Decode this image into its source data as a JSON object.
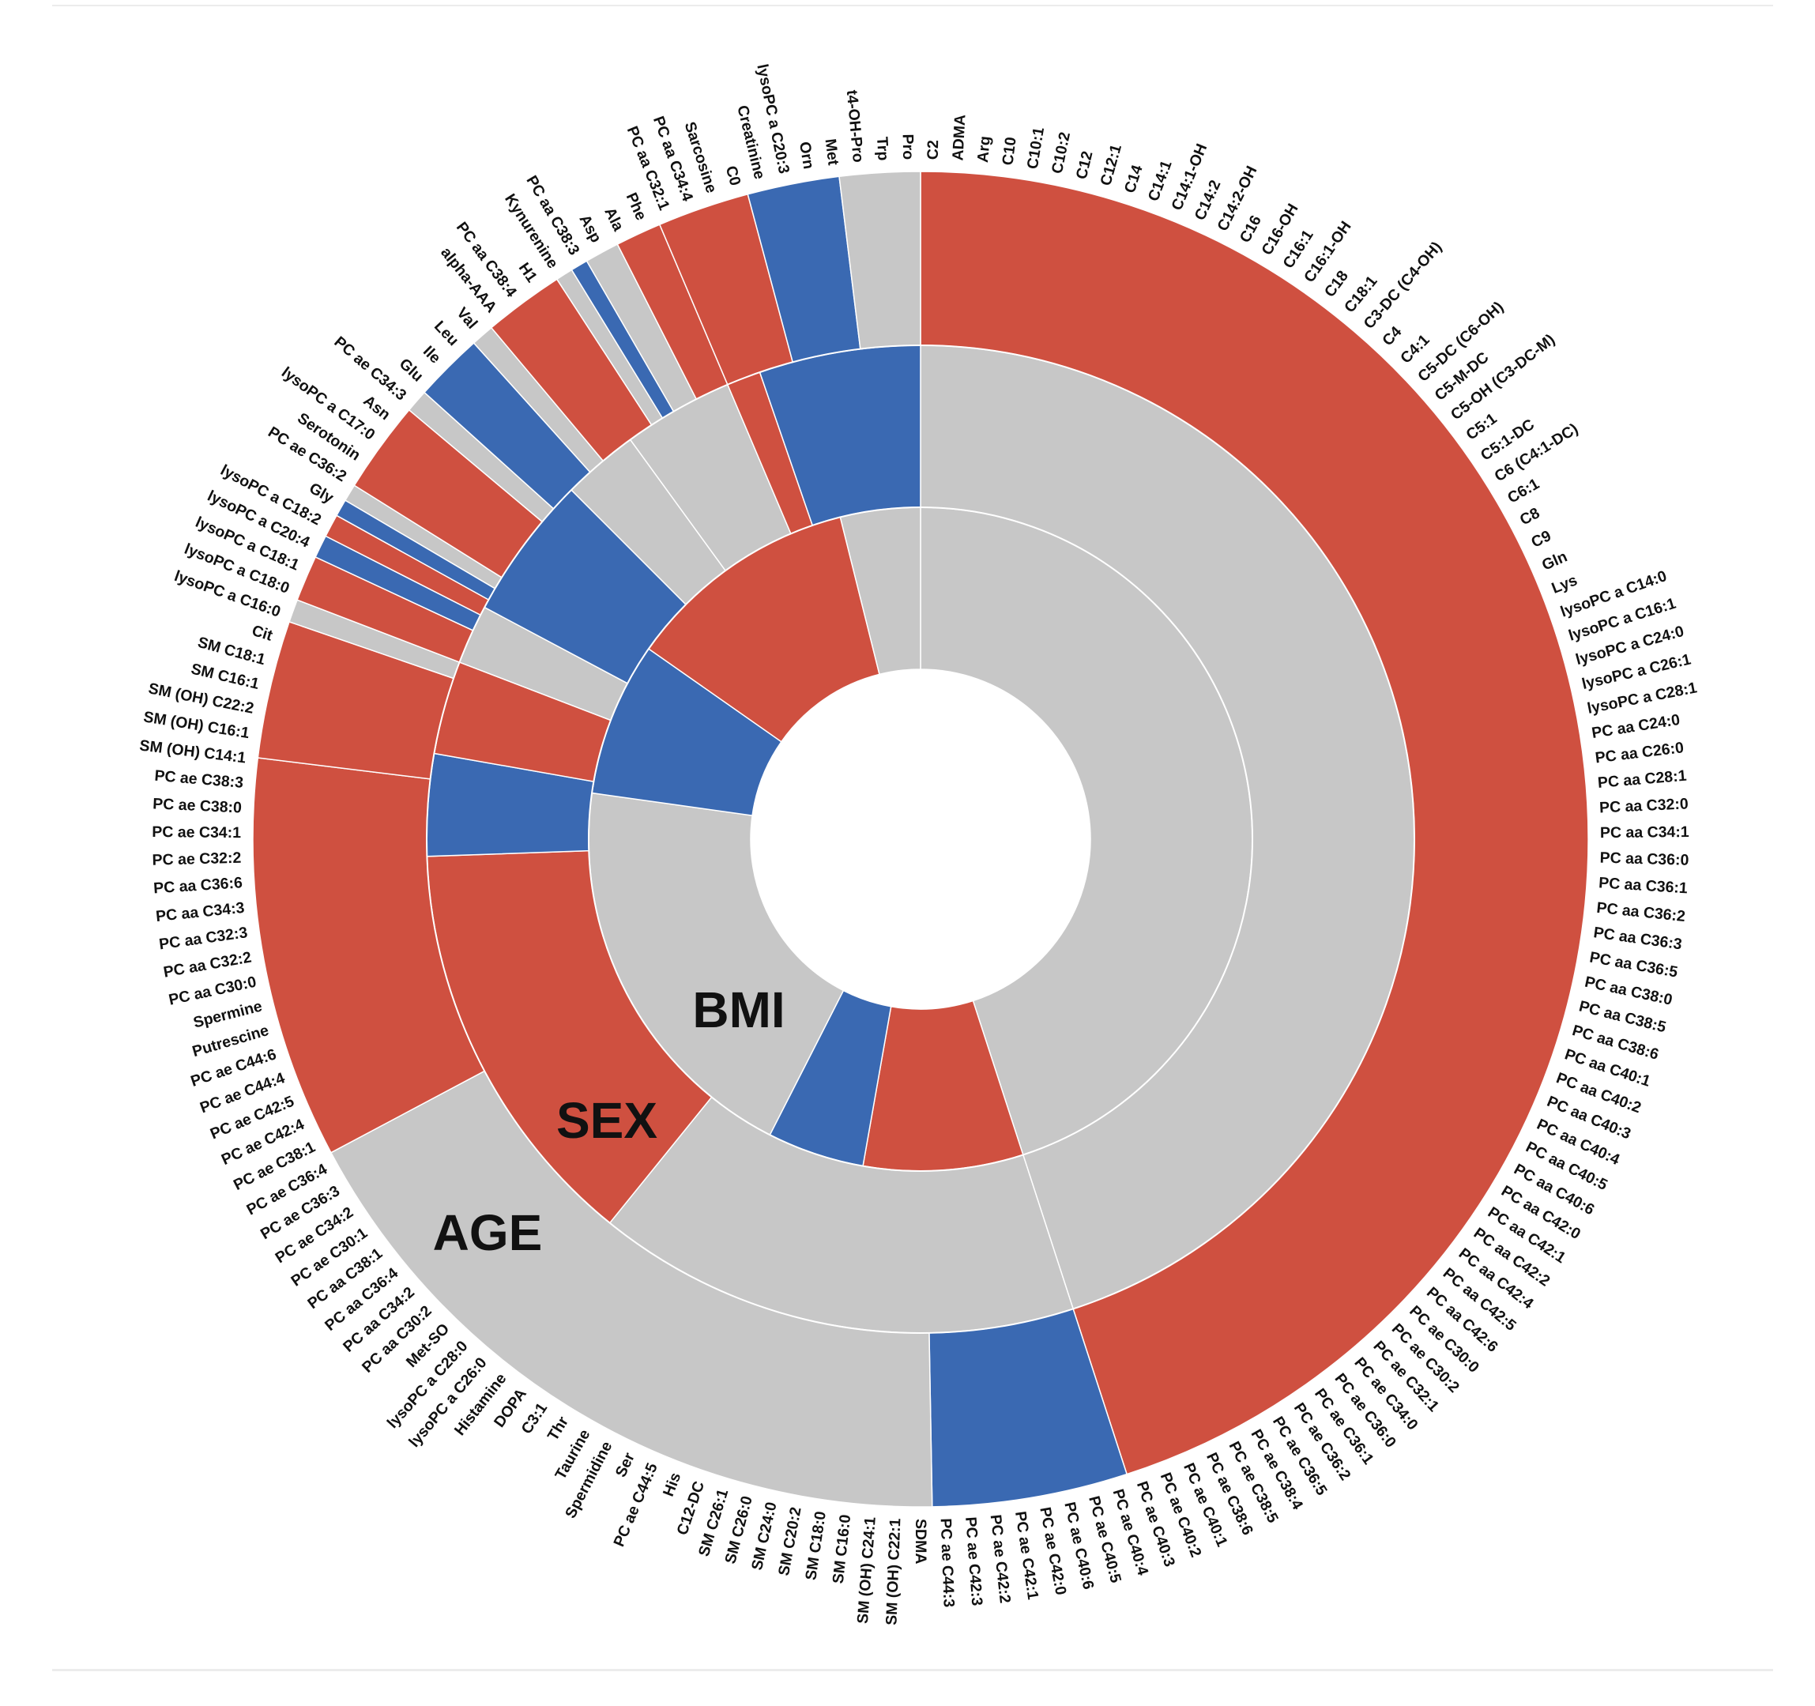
{
  "chart_data": {
    "type": "sunburst",
    "title": "",
    "colors": {
      "increase": "#cf5040",
      "decrease": "#3a69b2",
      "none": "#c7c7c7"
    },
    "ring_labels": {
      "inner": "BMI",
      "middle": "SEX",
      "outer": "AGE"
    },
    "start_label": "C2",
    "metabolites": [
      "C2",
      "ADMA",
      "Arg",
      "C10",
      "C10:1",
      "C10:2",
      "C12",
      "C12:1",
      "C14",
      "C14:1",
      "C14:1-OH",
      "C14:2",
      "C14:2-OH",
      "C16",
      "C16-OH",
      "C16:1",
      "C16:1-OH",
      "C18",
      "C18:1",
      "C3-DC (C4-OH)",
      "C4",
      "C4:1",
      "C5-DC (C6-OH)",
      "C5-M-DC",
      "C5-OH (C3-DC-M)",
      "C5:1",
      "C5:1-DC",
      "C6 (C4:1-DC)",
      "C6:1",
      "C8",
      "C9",
      "Gln",
      "Lys",
      "lysoPC a C14:0",
      "lysoPC a C16:1",
      "lysoPC a C24:0",
      "lysoPC a C26:1",
      "lysoPC a C28:1",
      "PC aa C24:0",
      "PC aa C26:0",
      "PC aa C28:1",
      "PC aa C32:0",
      "PC aa C34:1",
      "PC aa C36:0",
      "PC aa C36:1",
      "PC aa C36:2",
      "PC aa C36:3",
      "PC aa C36:5",
      "PC aa C38:0",
      "PC aa C38:5",
      "PC aa C38:6",
      "PC aa C40:1",
      "PC aa C40:2",
      "PC aa C40:3",
      "PC aa C40:4",
      "PC aa C40:5",
      "PC aa C40:6",
      "PC aa C42:0",
      "PC aa C42:1",
      "PC aa C42:2",
      "PC aa C42:4",
      "PC aa C42:5",
      "PC aa C42:6",
      "PC ae C30:0",
      "PC ae C30:2",
      "PC ae C32:1",
      "PC ae C34:0",
      "PC ae C36:0",
      "PC ae C36:1",
      "PC ae C36:2",
      "PC ae C36:5",
      "PC ae C38:4",
      "PC ae C38:5",
      "PC ae C38:6",
      "PC ae C40:1",
      "PC ae C40:2",
      "PC ae C40:3",
      "PC ae C40:4",
      "PC ae C40:5",
      "PC ae C40:6",
      "PC ae C42:0",
      "PC ae C42:1",
      "PC ae C42:2",
      "PC ae C42:3",
      "PC ae C44:3",
      "SDMA",
      "SM (OH) C22:1",
      "SM (OH) C24:1",
      "SM C16:0",
      "SM C18:0",
      "SM C20:2",
      "SM C24:0",
      "SM C26:0",
      "SM C26:1",
      "C12-DC",
      "His",
      "PC ae C44:5",
      "Ser",
      "Spermidine",
      "Taurine",
      "Thr",
      "C3:1",
      "DOPA",
      "Histamine",
      "lysoPC a C26:0",
      "lysoPC a C28:0",
      "Met-SO",
      "PC aa C30:2",
      "PC aa C34:2",
      "PC aa C36:4",
      "PC aa C38:1",
      "PC ae C30:1",
      "PC ae C34:2",
      "PC ae C36:3",
      "PC ae C36:4",
      "PC ae C38:1",
      "PC ae C42:4",
      "PC ae C42:5",
      "PC ae C44:4",
      "PC ae C44:6",
      "Putrescine",
      "Spermine",
      "PC aa C30:0",
      "PC aa C32:2",
      "PC aa C32:3",
      "PC aa C34:3",
      "PC aa C36:6",
      "PC ae C32:2",
      "PC ae C34:1",
      "PC ae C38:0",
      "PC ae C38:3",
      "SM (OH) C14:1",
      "SM (OH) C16:1",
      "SM (OH) C22:2",
      "SM C16:1",
      "SM C18:1",
      "Cit",
      "lysoPC a C16:0",
      "lysoPC a C18:0",
      "lysoPC a C18:1",
      "lysoPC a C20:4",
      "lysoPC a C18:2",
      "Gly",
      "PC ae C36:2",
      "Serotonin",
      "lysoPC a C17:0",
      "Asn",
      "PC ae C34:3",
      "Glu",
      "Ile",
      "Leu",
      "Val",
      "alpha-AAA",
      "PC aa C38:4",
      "H1",
      "Kynurenine",
      "PC aa C38:3",
      "Asp",
      "Ala",
      "Phe",
      "PC aa C32:1",
      "PC aa C34:4",
      "Sarcosine",
      "C0",
      "Creatinine",
      "lysoPC a C20:3",
      "Orn",
      "Met",
      "t4-OH-Pro",
      "Trp",
      "Pro"
    ],
    "rings": {
      "BMI": [
        {
          "start": 0,
          "end": 162,
          "effect": "none"
        },
        {
          "start": 162,
          "end": 190,
          "effect": "increase"
        },
        {
          "start": 190,
          "end": 207,
          "effect": "decrease"
        },
        {
          "start": 207,
          "end": 278,
          "effect": "none"
        },
        {
          "start": 278,
          "end": 305,
          "effect": "decrease"
        },
        {
          "start": 305,
          "end": 346,
          "effect": "increase"
        },
        {
          "start": 346,
          "end": 360,
          "effect": "none"
        }
      ],
      "SEX": [
        {
          "start": 0,
          "end": 162,
          "effect": "none"
        },
        {
          "start": 162,
          "end": 219,
          "effect": "none"
        },
        {
          "start": 219,
          "end": 268,
          "effect": "increase"
        },
        {
          "start": 268,
          "end": 280,
          "effect": "decrease"
        },
        {
          "start": 280,
          "end": 291,
          "effect": "increase"
        },
        {
          "start": 291,
          "end": 298,
          "effect": "none"
        },
        {
          "start": 298,
          "end": 315,
          "effect": "decrease"
        },
        {
          "start": 315,
          "end": 324,
          "effect": "none"
        },
        {
          "start": 324,
          "end": 337,
          "effect": "none"
        },
        {
          "start": 337,
          "end": 341,
          "effect": "increase"
        },
        {
          "start": 341,
          "end": 360,
          "effect": "decrease"
        }
      ],
      "AGE": [
        {
          "start": 0,
          "end": 162,
          "effect": "increase"
        },
        {
          "start": 162,
          "end": 179,
          "effect": "decrease"
        },
        {
          "start": 179,
          "end": 242,
          "effect": "none"
        },
        {
          "start": 242,
          "end": 277,
          "effect": "increase"
        },
        {
          "start": 277,
          "end": 289,
          "effect": "increase"
        },
        {
          "start": 289,
          "end": 291,
          "effect": "none"
        },
        {
          "start": 291,
          "end": 295,
          "effect": "increase"
        },
        {
          "start": 295,
          "end": 297,
          "effect": "decrease"
        },
        {
          "start": 297,
          "end": 299,
          "effect": "increase"
        },
        {
          "start": 299,
          "end": 300.5,
          "effect": "decrease"
        },
        {
          "start": 300.5,
          "end": 302,
          "effect": "none"
        },
        {
          "start": 302,
          "end": 310,
          "effect": "increase"
        },
        {
          "start": 310,
          "end": 312,
          "effect": "none"
        },
        {
          "start": 312,
          "end": 318,
          "effect": "decrease"
        },
        {
          "start": 318,
          "end": 320,
          "effect": "none"
        },
        {
          "start": 320,
          "end": 327,
          "effect": "increase"
        },
        {
          "start": 327,
          "end": 328.5,
          "effect": "none"
        },
        {
          "start": 328.5,
          "end": 330,
          "effect": "decrease"
        },
        {
          "start": 330,
          "end": 333,
          "effect": "none"
        },
        {
          "start": 333,
          "end": 337,
          "effect": "increase"
        },
        {
          "start": 337,
          "end": 345,
          "effect": "increase"
        },
        {
          "start": 345,
          "end": 353,
          "effect": "decrease"
        },
        {
          "start": 353,
          "end": 360,
          "effect": "none"
        }
      ]
    },
    "radii_order": [
      "BMI",
      "SEX",
      "AGE"
    ]
  }
}
